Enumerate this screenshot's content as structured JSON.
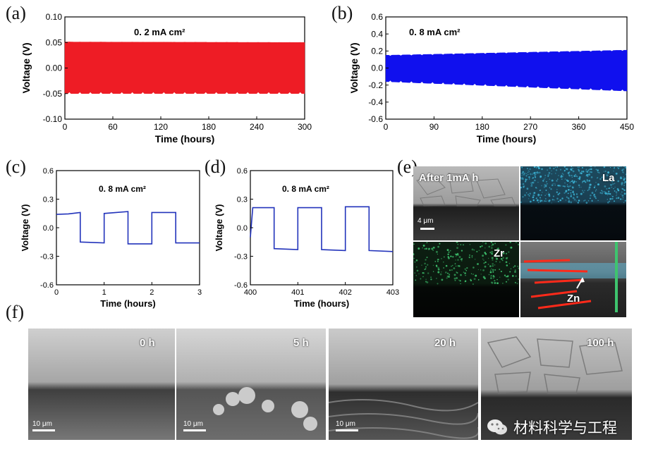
{
  "panel_letters": {
    "a": "(a)",
    "b": "(b)",
    "c": "(c)",
    "d": "(d)",
    "e": "(e)",
    "f": "(f)"
  },
  "colors": {
    "red": "#ee1c25",
    "blue": "#1010ee",
    "trace": "#2233bb",
    "cyan": "#3cb4d6",
    "green": "#3ec46e"
  },
  "chart_data": [
    {
      "id": "a",
      "type": "line",
      "annotation": "0. 2 mA cm²",
      "xlabel": "Time (hours)",
      "ylabel": "Voltage (V)",
      "xlim": [
        0,
        300
      ],
      "ylim": [
        -0.1,
        0.1
      ],
      "xticks": [
        0,
        60,
        120,
        180,
        240,
        300
      ],
      "yticks": [
        -0.1,
        -0.05,
        0.0,
        0.05,
        0.1
      ],
      "ytick_labels": [
        "-0.10",
        "-0.05",
        "0.00",
        "0.05",
        "0.10"
      ],
      "series": [
        {
          "color": "#ee1c25",
          "envelope_upper": [
            [
              0,
              0.051
            ],
            [
              300,
              0.05
            ]
          ],
          "envelope_lower": [
            [
              0,
              -0.05
            ],
            [
              300,
              -0.05
            ]
          ]
        }
      ]
    },
    {
      "id": "b",
      "type": "line",
      "annotation": "0. 8 mA cm²",
      "xlabel": "Time (hours)",
      "ylabel": "Voltage (V)",
      "xlim": [
        0,
        450
      ],
      "ylim": [
        -0.6,
        0.6
      ],
      "xticks": [
        0,
        90,
        180,
        270,
        360,
        450
      ],
      "yticks": [
        -0.6,
        -0.4,
        -0.2,
        0.0,
        0.2,
        0.4,
        0.6
      ],
      "ytick_labels": [
        "-0.6",
        "-0.4",
        "-0.2",
        "0.0",
        "0.2",
        "0.4",
        "0.6"
      ],
      "series": [
        {
          "color": "#1010ee",
          "envelope_upper": [
            [
              0,
              0.15
            ],
            [
              450,
              0.21
            ]
          ],
          "envelope_lower": [
            [
              0,
              -0.16
            ],
            [
              450,
              -0.27
            ]
          ]
        }
      ]
    },
    {
      "id": "c",
      "type": "line",
      "annotation": "0. 8 mA cm²",
      "xlabel": "Time (hours)",
      "ylabel": "Voltage (V)",
      "xlim": [
        0,
        3
      ],
      "ylim": [
        -0.6,
        0.6
      ],
      "xticks": [
        0,
        1,
        2,
        3
      ],
      "yticks": [
        -0.6,
        -0.3,
        0.0,
        0.3,
        0.6
      ],
      "ytick_labels": [
        "-0.6",
        "-0.3",
        "0.0",
        "0.3",
        "0.6"
      ],
      "series": [
        {
          "color": "#2233bb",
          "x": [
            0,
            0.25,
            0.5,
            0.5,
            1.0,
            1.0,
            1.5,
            1.5,
            2.0,
            2.0,
            2.5,
            2.5,
            3.0
          ],
          "y": [
            0.14,
            0.145,
            0.16,
            -0.15,
            -0.16,
            0.15,
            0.17,
            -0.17,
            -0.17,
            0.16,
            0.16,
            -0.16,
            -0.16
          ]
        }
      ]
    },
    {
      "id": "d",
      "type": "line",
      "annotation": "0. 8 mA cm²",
      "xlabel": "Time (hours)",
      "ylabel": "Voltage (V)",
      "xlim": [
        400,
        403
      ],
      "ylim": [
        -0.6,
        0.6
      ],
      "xticks": [
        400,
        401,
        402,
        403
      ],
      "yticks": [
        -0.6,
        -0.3,
        0.0,
        0.3,
        0.6
      ],
      "ytick_labels": [
        "-0.6",
        "-0.3",
        "0.0",
        "0.3",
        "0.6"
      ],
      "series": [
        {
          "color": "#2233bb",
          "x": [
            400,
            400.05,
            400.5,
            400.5,
            401.0,
            401.0,
            401.5,
            401.5,
            402.0,
            402.0,
            402.5,
            402.5,
            403.0
          ],
          "y": [
            -0.1,
            0.21,
            0.21,
            -0.22,
            -0.23,
            0.21,
            0.21,
            -0.23,
            -0.24,
            0.22,
            0.22,
            -0.24,
            -0.25
          ]
        }
      ]
    }
  ],
  "panel_e": {
    "tiles": [
      {
        "label": "After 1mA h",
        "scale": "4 μm"
      },
      {
        "label": "La"
      },
      {
        "label": "Zr"
      },
      {
        "label": "Zn"
      }
    ]
  },
  "panel_f": {
    "tiles": [
      {
        "label": "0  h",
        "scale": "10 μm"
      },
      {
        "label": "5  h",
        "scale": "10 μm"
      },
      {
        "label": "20  h",
        "scale": "10 μm"
      },
      {
        "label": "100  h"
      }
    ]
  },
  "watermark": {
    "text": "材料科学与工程"
  }
}
